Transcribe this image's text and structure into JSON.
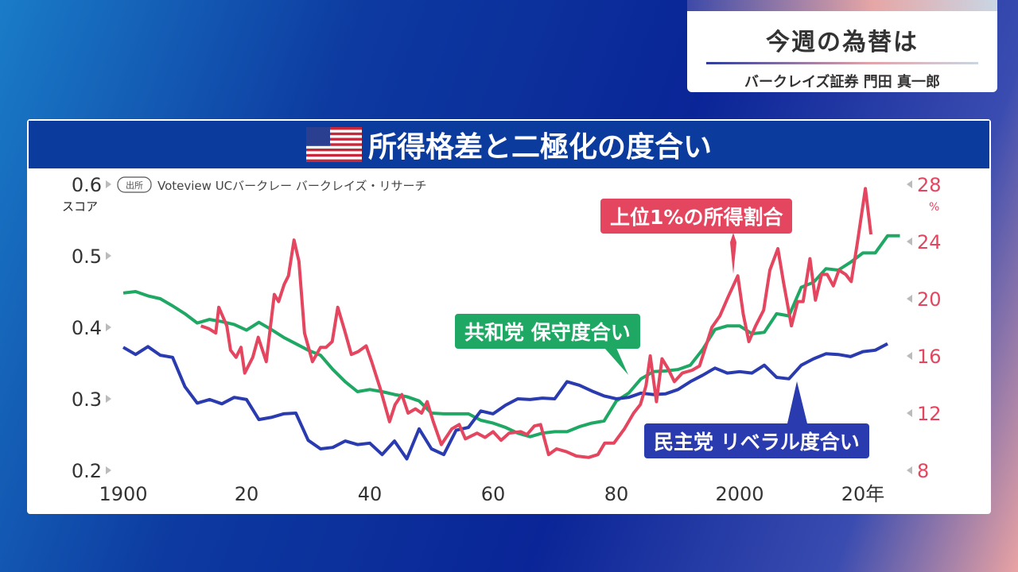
{
  "header": {
    "title": "今週の為替は",
    "subtitle": "バークレイズ証券 門田 真一郎"
  },
  "panel": {
    "title": "所得格差と二極化の度合い",
    "flag_icon": "us-flag-icon"
  },
  "source": {
    "badge": "出所",
    "text": "Voteview UCバークレー バークレイズ・リサーチ"
  },
  "colors": {
    "red": "#e4455f",
    "green": "#1fa864",
    "blue": "#2a3bb0"
  },
  "chart_data": {
    "type": "line",
    "title": "所得格差と二極化の度合い",
    "xlabel": "年",
    "ylabel": "スコア",
    "y2label": "%",
    "xlim": [
      1900,
      2027
    ],
    "ylim": [
      0.2,
      0.6
    ],
    "y2lim": [
      8,
      28
    ],
    "x_ticks": [
      "1900",
      "20",
      "40",
      "60",
      "80",
      "2000",
      "20年"
    ],
    "x_tick_values": [
      1900,
      1920,
      1940,
      1960,
      1980,
      2000,
      2020
    ],
    "y_ticks": [
      "0.6",
      "0.5",
      "0.4",
      "0.3",
      "0.2"
    ],
    "y_tick_values": [
      0.6,
      0.5,
      0.4,
      0.3,
      0.2
    ],
    "y2_ticks": [
      "28",
      "24",
      "20",
      "16",
      "12",
      "8"
    ],
    "y2_tick_values": [
      28,
      24,
      20,
      16,
      12,
      8
    ],
    "series": [
      {
        "name": "上位1%の所得割合",
        "axis": "right",
        "color": "#e4455f",
        "points": [
          [
            1912.6,
            18.1
          ],
          [
            1913.9,
            17.9
          ],
          [
            1915,
            17.6
          ],
          [
            1915.5,
            19.4
          ],
          [
            1916.8,
            18.1
          ],
          [
            1917.4,
            16.4
          ],
          [
            1918.3,
            15.9
          ],
          [
            1919.1,
            16.6
          ],
          [
            1919.7,
            14.8
          ],
          [
            1921,
            15.9
          ],
          [
            1921.9,
            17.3
          ],
          [
            1923.2,
            15.6
          ],
          [
            1924.5,
            20.3
          ],
          [
            1925.2,
            19.8
          ],
          [
            1926.1,
            21.0
          ],
          [
            1926.8,
            21.6
          ],
          [
            1927.7,
            24.1
          ],
          [
            1928.5,
            22.6
          ],
          [
            1929.4,
            17.6
          ],
          [
            1930.7,
            15.6
          ],
          [
            1932,
            16.6
          ],
          [
            1932.9,
            16.6
          ],
          [
            1933.9,
            17.0
          ],
          [
            1934.8,
            19.4
          ],
          [
            1935.9,
            17.8
          ],
          [
            1937,
            16.1
          ],
          [
            1938.1,
            16.3
          ],
          [
            1939.4,
            16.7
          ],
          [
            1940.3,
            15.6
          ],
          [
            1941.7,
            13.7
          ],
          [
            1943.2,
            11.4
          ],
          [
            1944.1,
            12.6
          ],
          [
            1945.2,
            13.3
          ],
          [
            1946.2,
            12.0
          ],
          [
            1947.4,
            12.3
          ],
          [
            1948.4,
            12.0
          ],
          [
            1949.3,
            12.8
          ],
          [
            1950.3,
            11.4
          ],
          [
            1951.6,
            9.8
          ],
          [
            1953.3,
            10.9
          ],
          [
            1954.5,
            11.2
          ],
          [
            1955.5,
            10.2
          ],
          [
            1957.4,
            10.6
          ],
          [
            1958.7,
            10.3
          ],
          [
            1960,
            10.7
          ],
          [
            1961.3,
            10.1
          ],
          [
            1962.6,
            10.6
          ],
          [
            1964.5,
            10.7
          ],
          [
            1965.5,
            10.5
          ],
          [
            1966.7,
            11.1
          ],
          [
            1967.7,
            11.2
          ],
          [
            1969,
            9.1
          ],
          [
            1970.3,
            9.5
          ],
          [
            1971.9,
            9.3
          ],
          [
            1973.5,
            9.0
          ],
          [
            1975.5,
            8.9
          ],
          [
            1977,
            9.1
          ],
          [
            1978.1,
            9.9
          ],
          [
            1979.6,
            9.9
          ],
          [
            1981.3,
            10.9
          ],
          [
            1982.8,
            12.0
          ],
          [
            1983.9,
            12.6
          ],
          [
            1984.8,
            13.9
          ],
          [
            1985.5,
            16.0
          ],
          [
            1986.5,
            12.8
          ],
          [
            1987.4,
            15.8
          ],
          [
            1988.4,
            15.1
          ],
          [
            1989.4,
            14.2
          ],
          [
            1990.7,
            14.8
          ],
          [
            1992.3,
            15.0
          ],
          [
            1993.5,
            15.3
          ],
          [
            1995.5,
            18.0
          ],
          [
            1996.8,
            18.8
          ],
          [
            1998.1,
            20.1
          ],
          [
            1999.7,
            21.6
          ],
          [
            2000.6,
            18.9
          ],
          [
            2001.5,
            17.0
          ],
          [
            2002.6,
            18.1
          ],
          [
            2003.9,
            19.2
          ],
          [
            2004.9,
            22.0
          ],
          [
            2006.2,
            23.5
          ],
          [
            2007.1,
            21.2
          ],
          [
            2008.4,
            18.1
          ],
          [
            2009.4,
            19.8
          ],
          [
            2010.3,
            19.8
          ],
          [
            2011.4,
            22.8
          ],
          [
            2012.3,
            19.9
          ],
          [
            2013.3,
            21.7
          ],
          [
            2014.2,
            21.7
          ],
          [
            2015.2,
            20.9
          ],
          [
            2016.1,
            22.0
          ],
          [
            2017.2,
            21.7
          ],
          [
            2018.1,
            21.2
          ],
          [
            2019.1,
            23.9
          ],
          [
            2020.4,
            27.7
          ],
          [
            2021.3,
            24.5
          ]
        ]
      },
      {
        "name": "共和党 保守度合い",
        "axis": "left",
        "color": "#1fa864",
        "points": [
          [
            1900,
            0.448
          ],
          [
            1902,
            0.45
          ],
          [
            1904,
            0.444
          ],
          [
            1906,
            0.44
          ],
          [
            1908,
            0.43
          ],
          [
            1910,
            0.419
          ],
          [
            1912,
            0.406
          ],
          [
            1914,
            0.411
          ],
          [
            1916,
            0.408
          ],
          [
            1918,
            0.404
          ],
          [
            1920,
            0.396
          ],
          [
            1922,
            0.407
          ],
          [
            1924,
            0.397
          ],
          [
            1926,
            0.386
          ],
          [
            1928,
            0.377
          ],
          [
            1930,
            0.368
          ],
          [
            1932,
            0.361
          ],
          [
            1934,
            0.341
          ],
          [
            1936,
            0.324
          ],
          [
            1938,
            0.31
          ],
          [
            1940,
            0.313
          ],
          [
            1942,
            0.31
          ],
          [
            1944,
            0.306
          ],
          [
            1946,
            0.303
          ],
          [
            1948,
            0.297
          ],
          [
            1950,
            0.28
          ],
          [
            1952,
            0.279
          ],
          [
            1954,
            0.279
          ],
          [
            1956,
            0.279
          ],
          [
            1958,
            0.27
          ],
          [
            1960,
            0.266
          ],
          [
            1962,
            0.26
          ],
          [
            1964,
            0.252
          ],
          [
            1966,
            0.247
          ],
          [
            1968,
            0.252
          ],
          [
            1970,
            0.254
          ],
          [
            1972,
            0.254
          ],
          [
            1974,
            0.261
          ],
          [
            1976,
            0.266
          ],
          [
            1978,
            0.269
          ],
          [
            1980,
            0.297
          ],
          [
            1982,
            0.308
          ],
          [
            1984,
            0.328
          ],
          [
            1986,
            0.338
          ],
          [
            1988,
            0.339
          ],
          [
            1990,
            0.341
          ],
          [
            1992,
            0.347
          ],
          [
            1994,
            0.369
          ],
          [
            1996,
            0.397
          ],
          [
            1998,
            0.402
          ],
          [
            2000,
            0.402
          ],
          [
            2002,
            0.391
          ],
          [
            2004,
            0.393
          ],
          [
            2006,
            0.419
          ],
          [
            2008,
            0.416
          ],
          [
            2010,
            0.456
          ],
          [
            2012,
            0.463
          ],
          [
            2014,
            0.482
          ],
          [
            2016,
            0.48
          ],
          [
            2018,
            0.491
          ],
          [
            2020,
            0.504
          ],
          [
            2022,
            0.504
          ],
          [
            2024,
            0.528
          ],
          [
            2026,
            0.528
          ]
        ]
      },
      {
        "name": "民主党 リベラル度合い",
        "axis": "left",
        "color": "#2a3bb0",
        "points": [
          [
            1900,
            0.372
          ],
          [
            1902,
            0.362
          ],
          [
            1904,
            0.373
          ],
          [
            1906,
            0.361
          ],
          [
            1908,
            0.358
          ],
          [
            1910,
            0.317
          ],
          [
            1912,
            0.294
          ],
          [
            1914,
            0.299
          ],
          [
            1916,
            0.293
          ],
          [
            1918,
            0.302
          ],
          [
            1920,
            0.299
          ],
          [
            1922,
            0.271
          ],
          [
            1924,
            0.274
          ],
          [
            1926,
            0.279
          ],
          [
            1928,
            0.28
          ],
          [
            1930,
            0.242
          ],
          [
            1932,
            0.23
          ],
          [
            1934,
            0.232
          ],
          [
            1936,
            0.241
          ],
          [
            1938,
            0.236
          ],
          [
            1940,
            0.238
          ],
          [
            1942,
            0.222
          ],
          [
            1944,
            0.241
          ],
          [
            1946,
            0.216
          ],
          [
            1948,
            0.258
          ],
          [
            1950,
            0.23
          ],
          [
            1952,
            0.222
          ],
          [
            1954,
            0.256
          ],
          [
            1956,
            0.26
          ],
          [
            1958,
            0.283
          ],
          [
            1960,
            0.279
          ],
          [
            1962,
            0.291
          ],
          [
            1964,
            0.3
          ],
          [
            1966,
            0.299
          ],
          [
            1968,
            0.301
          ],
          [
            1970,
            0.3
          ],
          [
            1972,
            0.324
          ],
          [
            1974,
            0.319
          ],
          [
            1976,
            0.311
          ],
          [
            1978,
            0.304
          ],
          [
            1980,
            0.3
          ],
          [
            1982,
            0.302
          ],
          [
            1984,
            0.308
          ],
          [
            1986,
            0.306
          ],
          [
            1988,
            0.307
          ],
          [
            1990,
            0.313
          ],
          [
            1992,
            0.324
          ],
          [
            1994,
            0.333
          ],
          [
            1996,
            0.343
          ],
          [
            1998,
            0.336
          ],
          [
            2000,
            0.338
          ],
          [
            2002,
            0.336
          ],
          [
            2004,
            0.347
          ],
          [
            2006,
            0.33
          ],
          [
            2008,
            0.328
          ],
          [
            2010,
            0.347
          ],
          [
            2012,
            0.356
          ],
          [
            2014,
            0.363
          ],
          [
            2016,
            0.362
          ],
          [
            2018,
            0.359
          ],
          [
            2020,
            0.366
          ],
          [
            2022,
            0.368
          ],
          [
            2024,
            0.377
          ]
        ]
      }
    ]
  }
}
